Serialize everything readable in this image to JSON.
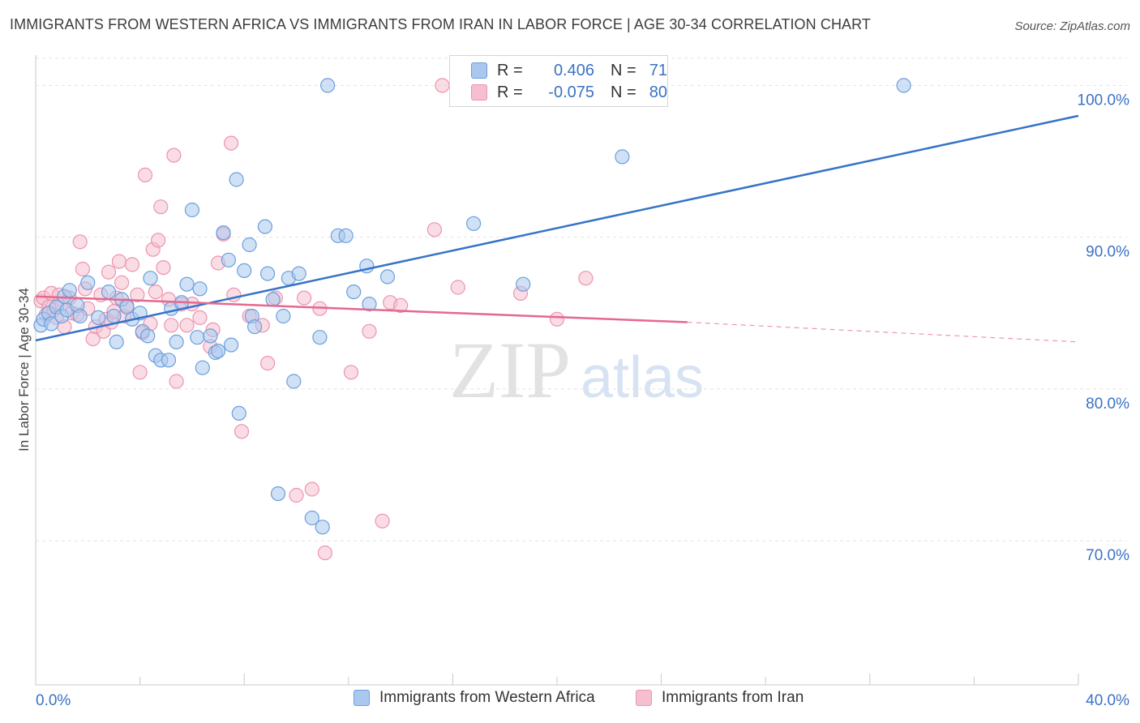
{
  "header": {
    "title": "IMMIGRANTS FROM WESTERN AFRICA VS IMMIGRANTS FROM IRAN IN LABOR FORCE | AGE 30-34 CORRELATION CHART",
    "source": "Source: ZipAtlas.com"
  },
  "watermark": {
    "zip": "ZIP",
    "atlas": "atlas"
  },
  "legend": {
    "rows": [
      {
        "r_label": "R =",
        "r_value": "0.406",
        "n_label": "N =",
        "n_value": "71"
      },
      {
        "r_label": "R =",
        "r_value": "-0.075",
        "n_label": "N =",
        "n_value": "80"
      }
    ]
  },
  "bottom_legend": {
    "series1": "Immigrants from Western Africa",
    "series2": "Immigrants from Iran"
  },
  "colors": {
    "series1_fill": "#aac8ef",
    "series1_stroke": "#6b9fdc",
    "series1_line": "#3673c8",
    "series2_fill": "#f6bfd0",
    "series2_stroke": "#ec94b0",
    "series2_line": "#e5688f",
    "axis_label": "#3b72c4",
    "grid": "#e4e4e4"
  },
  "chart_data": {
    "type": "scatter",
    "title": "IMMIGRANTS FROM WESTERN AFRICA VS IMMIGRANTS FROM IRAN IN LABOR FORCE | AGE 30-34 CORRELATION CHART",
    "xlabel": "",
    "ylabel": "In Labor Force | Age 30-34",
    "xlim": [
      0,
      40
    ],
    "ylim": [
      60.5,
      102
    ],
    "x_tick_labels": [
      "0.0%",
      "40.0%"
    ],
    "y_ticks": [
      70,
      80,
      90,
      100
    ],
    "y_tick_labels": [
      "70.0%",
      "80.0%",
      "90.0%",
      "100.0%"
    ],
    "grid": true,
    "legend_position": "top-center",
    "series": [
      {
        "name": "Immigrants from Western Africa",
        "r": 0.406,
        "n": 71,
        "trend": {
          "x": [
            0,
            40
          ],
          "y": [
            83.2,
            98.0
          ]
        },
        "points": [
          [
            0.2,
            84.2
          ],
          [
            0.3,
            84.6
          ],
          [
            0.5,
            85.0
          ],
          [
            0.6,
            84.3
          ],
          [
            0.8,
            85.4
          ],
          [
            1.0,
            84.8
          ],
          [
            1.1,
            86.1
          ],
          [
            1.2,
            85.2
          ],
          [
            1.3,
            86.5
          ],
          [
            1.6,
            85.5
          ],
          [
            1.7,
            84.8
          ],
          [
            2.0,
            87.0
          ],
          [
            2.4,
            84.7
          ],
          [
            2.8,
            86.4
          ],
          [
            3.0,
            84.8
          ],
          [
            3.1,
            83.1
          ],
          [
            3.3,
            85.9
          ],
          [
            3.5,
            85.4
          ],
          [
            3.7,
            84.6
          ],
          [
            4.0,
            85.0
          ],
          [
            4.1,
            83.8
          ],
          [
            4.3,
            83.5
          ],
          [
            4.4,
            87.3
          ],
          [
            4.6,
            82.2
          ],
          [
            4.8,
            81.9
          ],
          [
            5.1,
            81.9
          ],
          [
            5.2,
            85.3
          ],
          [
            5.4,
            83.1
          ],
          [
            5.6,
            85.7
          ],
          [
            5.8,
            86.9
          ],
          [
            6.0,
            91.8
          ],
          [
            6.2,
            83.4
          ],
          [
            6.3,
            86.6
          ],
          [
            6.4,
            81.4
          ],
          [
            6.7,
            83.5
          ],
          [
            6.9,
            82.4
          ],
          [
            7.0,
            82.5
          ],
          [
            7.2,
            90.3
          ],
          [
            7.4,
            88.5
          ],
          [
            7.5,
            82.9
          ],
          [
            7.7,
            93.8
          ],
          [
            7.8,
            78.4
          ],
          [
            8.0,
            87.8
          ],
          [
            8.2,
            89.5
          ],
          [
            8.3,
            84.8
          ],
          [
            8.4,
            84.1
          ],
          [
            8.8,
            90.7
          ],
          [
            8.9,
            87.6
          ],
          [
            9.1,
            85.9
          ],
          [
            9.3,
            73.1
          ],
          [
            9.5,
            84.8
          ],
          [
            9.7,
            87.3
          ],
          [
            9.9,
            80.5
          ],
          [
            10.1,
            87.6
          ],
          [
            10.6,
            71.5
          ],
          [
            10.9,
            83.4
          ],
          [
            11.0,
            70.9
          ],
          [
            11.2,
            100.0
          ],
          [
            11.6,
            90.1
          ],
          [
            11.9,
            90.1
          ],
          [
            12.2,
            86.4
          ],
          [
            12.7,
            88.1
          ],
          [
            12.8,
            85.6
          ],
          [
            13.5,
            87.4
          ],
          [
            16.2,
            100.0
          ],
          [
            16.8,
            90.9
          ],
          [
            18.7,
            86.9
          ],
          [
            22.5,
            95.3
          ],
          [
            33.3,
            100.0
          ]
        ]
      },
      {
        "name": "Immigrants from Iran",
        "r": -0.075,
        "n": 80,
        "trend": {
          "x": [
            0,
            25
          ],
          "y": [
            86.1,
            84.4
          ]
        },
        "trend_dashed": {
          "x": [
            25,
            40
          ],
          "y": [
            84.4,
            83.1
          ]
        },
        "points": [
          [
            0.2,
            85.8
          ],
          [
            0.3,
            86.0
          ],
          [
            0.4,
            84.9
          ],
          [
            0.5,
            85.4
          ],
          [
            0.6,
            86.3
          ],
          [
            0.7,
            85.2
          ],
          [
            0.8,
            84.7
          ],
          [
            0.9,
            86.2
          ],
          [
            1.0,
            85.6
          ],
          [
            1.1,
            84.1
          ],
          [
            1.3,
            86.0
          ],
          [
            1.4,
            85.0
          ],
          [
            1.6,
            84.9
          ],
          [
            1.7,
            89.7
          ],
          [
            1.8,
            87.9
          ],
          [
            1.9,
            86.6
          ],
          [
            2.0,
            85.3
          ],
          [
            2.2,
            83.3
          ],
          [
            2.3,
            84.1
          ],
          [
            2.5,
            86.2
          ],
          [
            2.6,
            83.8
          ],
          [
            2.7,
            84.6
          ],
          [
            2.8,
            87.7
          ],
          [
            2.9,
            84.4
          ],
          [
            3.0,
            85.1
          ],
          [
            3.1,
            86.0
          ],
          [
            3.2,
            88.4
          ],
          [
            3.3,
            87.0
          ],
          [
            3.4,
            84.8
          ],
          [
            3.5,
            85.5
          ],
          [
            3.7,
            88.2
          ],
          [
            3.9,
            86.2
          ],
          [
            4.0,
            81.1
          ],
          [
            4.1,
            83.7
          ],
          [
            4.2,
            94.1
          ],
          [
            4.4,
            84.3
          ],
          [
            4.5,
            89.2
          ],
          [
            4.6,
            86.4
          ],
          [
            4.7,
            89.8
          ],
          [
            4.8,
            92.0
          ],
          [
            4.9,
            88.0
          ],
          [
            5.1,
            85.9
          ],
          [
            5.2,
            84.2
          ],
          [
            5.3,
            95.4
          ],
          [
            5.4,
            80.5
          ],
          [
            5.6,
            85.6
          ],
          [
            5.8,
            84.2
          ],
          [
            6.0,
            85.6
          ],
          [
            6.3,
            84.7
          ],
          [
            6.7,
            82.8
          ],
          [
            6.8,
            83.9
          ],
          [
            7.0,
            88.3
          ],
          [
            7.2,
            90.2
          ],
          [
            7.5,
            96.2
          ],
          [
            7.6,
            86.2
          ],
          [
            7.9,
            77.2
          ],
          [
            8.2,
            84.8
          ],
          [
            8.7,
            84.2
          ],
          [
            8.9,
            81.7
          ],
          [
            9.2,
            86.0
          ],
          [
            10.0,
            73.0
          ],
          [
            10.3,
            86.0
          ],
          [
            10.6,
            73.4
          ],
          [
            10.9,
            85.3
          ],
          [
            11.1,
            69.2
          ],
          [
            12.1,
            81.1
          ],
          [
            12.8,
            83.8
          ],
          [
            13.3,
            71.3
          ],
          [
            13.6,
            85.7
          ],
          [
            14.0,
            85.5
          ],
          [
            15.3,
            90.5
          ],
          [
            15.6,
            100.0
          ],
          [
            16.2,
            86.7
          ],
          [
            18.6,
            86.3
          ],
          [
            20.0,
            84.6
          ],
          [
            21.1,
            87.3
          ]
        ]
      }
    ]
  }
}
